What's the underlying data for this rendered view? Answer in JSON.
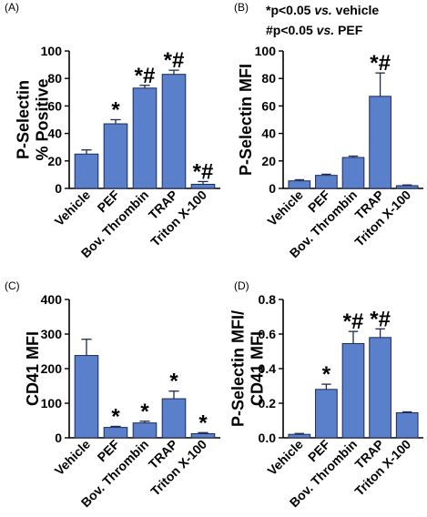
{
  "figure": {
    "legend_lines": [
      {
        "prefix": "*p<0.05 ",
        "italic": "vs.",
        "suffix": " vehicle"
      },
      {
        "prefix": "#p<0.05 ",
        "italic": "vs.",
        "suffix": " PEF"
      }
    ],
    "colors": {
      "bar_fill": "#5a7fcb",
      "bar_stroke": "#1c2a55",
      "axis": "#000000"
    }
  },
  "chart_data": [
    {
      "panel_label": "(A)",
      "type": "bar",
      "ylabel": [
        "P-Selectin",
        "% Positive"
      ],
      "categories": [
        "Vehicle",
        "PEF",
        "Bov. Thrombin",
        "TRAP",
        "Triton X-100"
      ],
      "values": [
        25,
        47,
        73,
        83,
        3
      ],
      "errors": [
        3,
        3,
        2,
        3,
        2
      ],
      "annotations": [
        "",
        "*",
        "*#",
        "*#",
        "*#"
      ],
      "ylim": [
        0,
        100
      ],
      "yticks": [
        0,
        20,
        40,
        60,
        80,
        100
      ]
    },
    {
      "panel_label": "(B)",
      "type": "bar",
      "ylabel": [
        "P-Selectin MFI"
      ],
      "categories": [
        "Vehicle",
        "PEF",
        "Bov. Thrombin",
        "TRAP",
        "Triton X-100"
      ],
      "values": [
        5.5,
        9.5,
        22.5,
        67,
        2
      ],
      "errors": [
        0.8,
        0.8,
        1,
        17,
        0.5
      ],
      "annotations": [
        "",
        "",
        "",
        "*#",
        ""
      ],
      "ylim": [
        0,
        100
      ],
      "yticks": [
        0,
        20,
        40,
        60,
        80,
        100
      ]
    },
    {
      "panel_label": "(C)",
      "type": "bar",
      "ylabel": [
        "CD41 MFI"
      ],
      "categories": [
        "Vehicle",
        "PEF",
        "Bov. Thrombin",
        "TRAP",
        "Triton X-100"
      ],
      "values": [
        238,
        30,
        43,
        113,
        12
      ],
      "errors": [
        47,
        3,
        5,
        22,
        3
      ],
      "annotations": [
        "",
        "*",
        "*",
        "*",
        "*"
      ],
      "ylim": [
        0,
        400
      ],
      "yticks": [
        0,
        100,
        200,
        300,
        400
      ]
    },
    {
      "panel_label": "(D)",
      "type": "bar",
      "ylabel": [
        "P-Selectin MFI/",
        "CD41 MFI"
      ],
      "categories": [
        "Vehicle",
        "PEF",
        "Bov. Thrombin",
        "TRAP",
        "Triton X-100"
      ],
      "values": [
        0.02,
        0.28,
        0.545,
        0.58,
        0.145
      ],
      "errors": [
        0.005,
        0.03,
        0.07,
        0.05,
        0.005
      ],
      "annotations": [
        "",
        "*",
        "*#",
        "*#",
        ""
      ],
      "ylim": [
        0,
        0.8
      ],
      "yticks": [
        0,
        0.2,
        0.4,
        0.6,
        0.8
      ],
      "ytick_labels": [
        "0.0",
        "0.2",
        "0.4",
        "0.6",
        "0.8"
      ]
    }
  ]
}
